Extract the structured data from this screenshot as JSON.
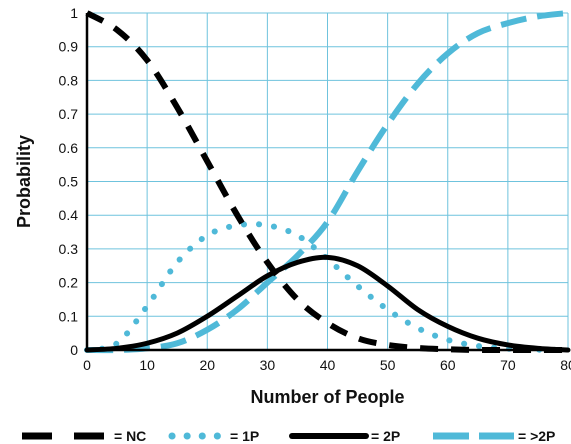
{
  "chart_data": {
    "type": "line",
    "title": "",
    "xlabel": "Number of People",
    "ylabel": "Probability",
    "xlim": [
      0,
      80
    ],
    "ylim": [
      0,
      1
    ],
    "xticks": [
      "0",
      "10",
      "20",
      "30",
      "40",
      "50",
      "60",
      "70",
      "80"
    ],
    "yticks": [
      "0",
      "0.1",
      "0.2",
      "0.3",
      "0.4",
      "0.5",
      "0.6",
      "0.7",
      "0.8",
      "0.9",
      "1"
    ],
    "grid": true,
    "legend_position": "bottom",
    "x": [
      0,
      5,
      10,
      15,
      20,
      25,
      30,
      35,
      40,
      45,
      50,
      55,
      60,
      65,
      70,
      75,
      80
    ],
    "series": [
      {
        "name": "NC",
        "style": "dashed",
        "color": "#000000",
        "values": [
          1.0,
          0.95,
          0.86,
          0.72,
          0.56,
          0.4,
          0.26,
          0.15,
          0.08,
          0.035,
          0.015,
          0.006,
          0.002,
          0.0,
          0.0,
          0.0,
          0.0
        ]
      },
      {
        "name": "1P",
        "style": "dotted",
        "color": "#4fb9d8",
        "values": [
          0.0,
          0.02,
          0.13,
          0.26,
          0.34,
          0.37,
          0.37,
          0.34,
          0.27,
          0.19,
          0.12,
          0.065,
          0.03,
          0.012,
          0.004,
          0.001,
          0.0
        ]
      },
      {
        "name": "2P",
        "style": "solid",
        "color": "#000000",
        "values": [
          0.0,
          0.005,
          0.02,
          0.05,
          0.1,
          0.16,
          0.22,
          0.26,
          0.275,
          0.25,
          0.19,
          0.12,
          0.07,
          0.035,
          0.015,
          0.005,
          0.0
        ]
      },
      {
        "name": ">2P",
        "style": "dashed",
        "color": "#4fb9d8",
        "values": [
          0.0,
          0.0,
          0.005,
          0.02,
          0.06,
          0.12,
          0.2,
          0.28,
          0.38,
          0.53,
          0.67,
          0.79,
          0.88,
          0.94,
          0.97,
          0.99,
          1.0
        ]
      }
    ],
    "legend": [
      {
        "label": "= NC",
        "series": "NC"
      },
      {
        "label": "= 1P",
        "series": "1P"
      },
      {
        "label": "= 2P",
        "series": "2P"
      },
      {
        "label": "= >2P",
        "series": ">2P"
      }
    ]
  }
}
